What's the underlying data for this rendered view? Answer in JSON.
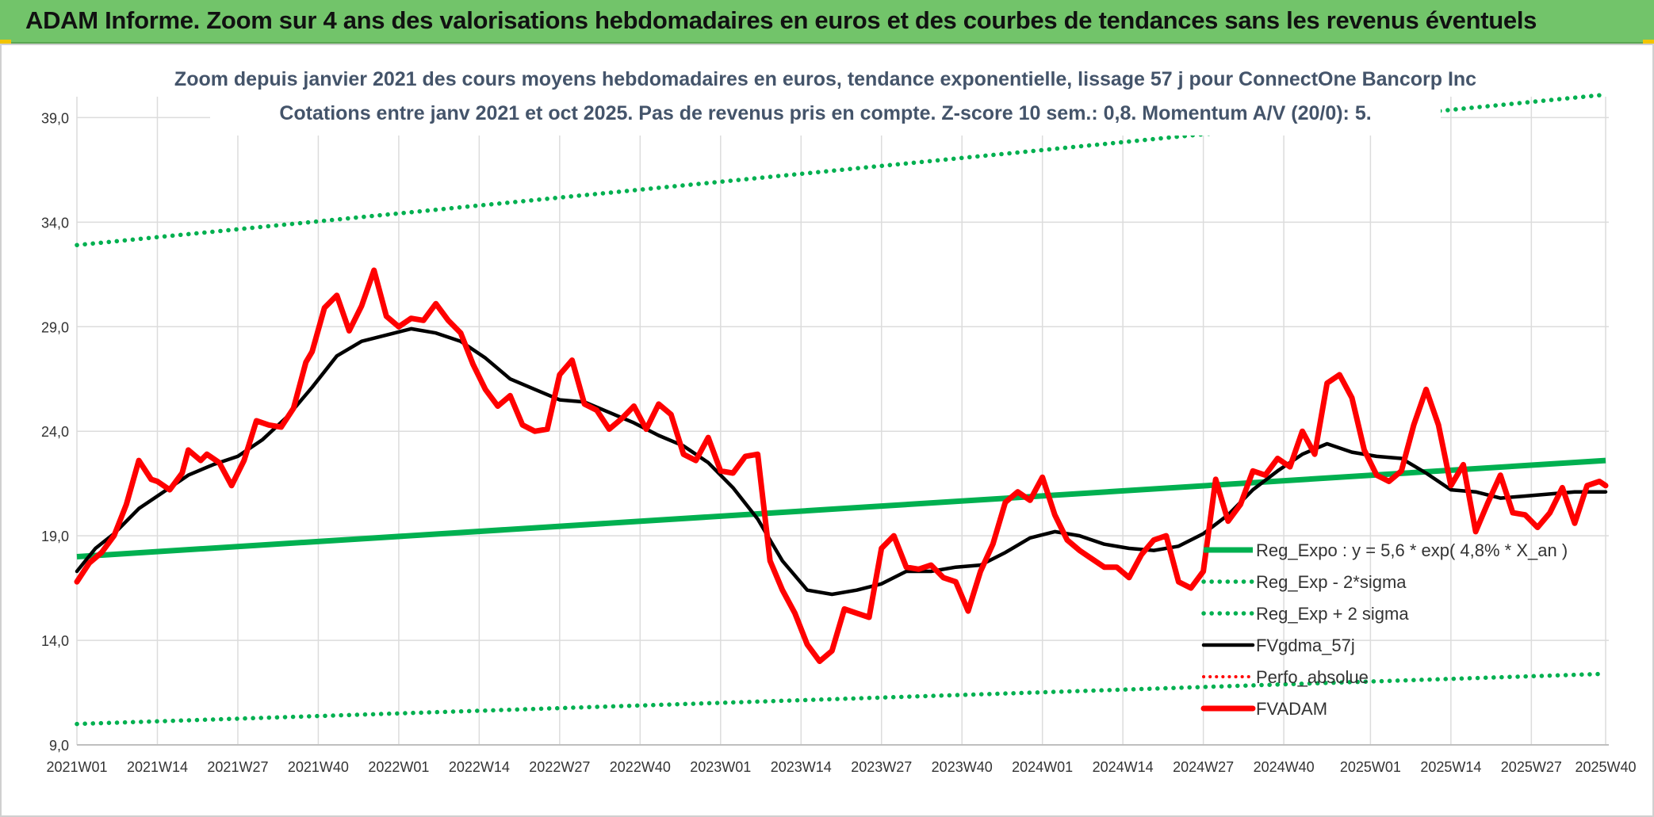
{
  "banner": {
    "title": "ADAM Informe. Zoom sur 4 ans des valorisations hebdomadaires en euros et des courbes de tendances sans les revenus éventuels"
  },
  "colors": {
    "banner_bg": "#72c46a",
    "reg": "#00b050",
    "sigma": "#00b050",
    "fv57": "#000000",
    "perfo": "#ff0000",
    "fvadam": "#ff0000"
  },
  "chart_data": {
    "type": "line",
    "title": "Zoom depuis janvier 2021 des cours moyens hebdomadaires en euros, tendance exponentielle, lissage 57 j pour ConnectOne Bancorp Inc",
    "subtitle": "Cotations entre janv 2021 et oct 2025. Pas de revenus pris en compte. Z-score 10 sem.: 0,8. Momentum A/V (20/0): 5.",
    "xlabel": "",
    "ylabel": "",
    "ylim": [
      9.0,
      40.0
    ],
    "yticks": [
      "9,0",
      "14,0",
      "19,0",
      "24,0",
      "29,0",
      "34,0",
      "39,0"
    ],
    "ytick_values": [
      9,
      14,
      19,
      24,
      29,
      34,
      39
    ],
    "x_range": [
      0,
      247
    ],
    "xticks": [
      "2021W01",
      "2021W14",
      "2021W27",
      "2021W40",
      "2022W01",
      "2022W14",
      "2022W27",
      "2022W40",
      "2023W01",
      "2023W14",
      "2023W27",
      "2023W40",
      "2024W01",
      "2024W14",
      "2024W27",
      "2024W40",
      "2025W01",
      "2025W14",
      "2025W27",
      "2025W40"
    ],
    "xtick_values": [
      0,
      13,
      26,
      39,
      52,
      65,
      78,
      91,
      104,
      117,
      130,
      143,
      156,
      169,
      182,
      195,
      209,
      222,
      235,
      247
    ],
    "grid": true,
    "legend_position": "bottom-right",
    "series": [
      {
        "name": "Reg_Expo : y = 5,6 * exp( 4,8% *  X_an )",
        "style": "solid",
        "color": "#00b050",
        "x": [
          0,
          247
        ],
        "y": [
          18.0,
          22.6
        ]
      },
      {
        "name": "Reg_Exp - 2*sigma",
        "style": "dotted",
        "color": "#00b050",
        "x": [
          0,
          247
        ],
        "y": [
          10.0,
          12.4
        ]
      },
      {
        "name": "Reg_Exp + 2 sigma",
        "style": "dotted",
        "color": "#00b050",
        "x": [
          0,
          247
        ],
        "y": [
          32.9,
          40.1
        ]
      },
      {
        "name": "FVgdma_57j",
        "style": "solid",
        "color": "#000000",
        "x": [
          0,
          3,
          6,
          10,
          14,
          18,
          22,
          26,
          30,
          34,
          38,
          42,
          46,
          50,
          54,
          58,
          62,
          66,
          70,
          74,
          78,
          82,
          86,
          90,
          94,
          98,
          102,
          106,
          110,
          114,
          118,
          122,
          126,
          130,
          134,
          138,
          142,
          146,
          150,
          154,
          158,
          162,
          166,
          170,
          174,
          178,
          182,
          186,
          190,
          194,
          198,
          202,
          206,
          210,
          214,
          218,
          222,
          226,
          230,
          234,
          238,
          242,
          247
        ],
        "y": [
          17.3,
          18.4,
          19.1,
          20.3,
          21.1,
          21.9,
          22.4,
          22.8,
          23.6,
          24.7,
          26.1,
          27.6,
          28.3,
          28.6,
          28.9,
          28.7,
          28.3,
          27.5,
          26.5,
          26.0,
          25.5,
          25.4,
          24.9,
          24.4,
          23.8,
          23.3,
          22.5,
          21.3,
          19.8,
          17.8,
          16.4,
          16.2,
          16.4,
          16.7,
          17.3,
          17.3,
          17.5,
          17.6,
          18.2,
          18.9,
          19.2,
          19.0,
          18.6,
          18.4,
          18.3,
          18.5,
          19.1,
          20.0,
          21.2,
          22.1,
          22.9,
          23.4,
          23.0,
          22.8,
          22.7,
          22.0,
          21.2,
          21.1,
          20.8,
          20.9,
          21.0,
          21.1,
          21.1
        ]
      },
      {
        "name": "Perfo_absolue",
        "style": "dotted",
        "color": "#ff0000",
        "x": [],
        "y": []
      },
      {
        "name": "FVADAM",
        "style": "solid",
        "color": "#ff0000",
        "x": [
          0,
          2,
          4,
          6,
          8,
          10,
          12,
          13,
          15,
          17,
          18,
          20,
          21,
          23,
          25,
          27,
          29,
          31,
          33,
          35,
          37,
          38,
          40,
          42,
          44,
          46,
          48,
          50,
          52,
          54,
          56,
          58,
          60,
          62,
          64,
          66,
          68,
          70,
          72,
          74,
          76,
          78,
          80,
          82,
          84,
          86,
          88,
          90,
          92,
          94,
          96,
          98,
          100,
          102,
          104,
          106,
          108,
          110,
          112,
          114,
          116,
          118,
          120,
          122,
          124,
          126,
          128,
          130,
          132,
          134,
          136,
          138,
          140,
          142,
          144,
          146,
          148,
          150,
          152,
          154,
          156,
          158,
          160,
          162,
          164,
          166,
          168,
          170,
          172,
          174,
          176,
          178,
          180,
          182,
          184,
          186,
          188,
          190,
          192,
          194,
          196,
          198,
          200,
          202,
          204,
          206,
          208,
          210,
          212,
          214,
          216,
          218,
          220,
          222,
          224,
          226,
          228,
          230,
          232,
          234,
          236,
          238,
          240,
          242,
          244,
          246,
          247
        ],
        "y": [
          16.8,
          17.7,
          18.2,
          19.0,
          20.5,
          22.6,
          21.7,
          21.6,
          21.2,
          22.0,
          23.1,
          22.6,
          22.9,
          22.5,
          21.4,
          22.6,
          24.5,
          24.3,
          24.2,
          25.1,
          27.3,
          27.8,
          29.9,
          30.5,
          28.8,
          30.0,
          31.7,
          29.5,
          29.0,
          29.4,
          29.3,
          30.1,
          29.3,
          28.7,
          27.2,
          26.0,
          25.2,
          25.7,
          24.3,
          24.0,
          24.1,
          26.7,
          27.4,
          25.3,
          25.0,
          24.1,
          24.6,
          25.2,
          24.1,
          25.3,
          24.8,
          22.9,
          22.6,
          23.7,
          22.1,
          22.0,
          22.8,
          22.9,
          17.8,
          16.4,
          15.3,
          13.8,
          13.0,
          13.5,
          15.5,
          15.3,
          15.1,
          18.4,
          19.0,
          17.5,
          17.4,
          17.6,
          17.0,
          16.8,
          15.4,
          17.3,
          18.6,
          20.6,
          21.1,
          20.7,
          21.8,
          20.0,
          18.8,
          18.3,
          17.9,
          17.5,
          17.5,
          17.0,
          18.1,
          18.8,
          19.0,
          16.8,
          16.5,
          17.3,
          21.7,
          19.7,
          20.5,
          22.1,
          21.9,
          22.7,
          22.3,
          24.0,
          22.9,
          26.3,
          26.7,
          25.6,
          23.1,
          21.9,
          21.6,
          22.1,
          24.3,
          26.0,
          24.3,
          21.4,
          22.4,
          19.2,
          20.6,
          21.9,
          20.1,
          20.0,
          19.4,
          20.1,
          21.3,
          19.6,
          21.4,
          21.6,
          21.4
        ]
      }
    ]
  }
}
